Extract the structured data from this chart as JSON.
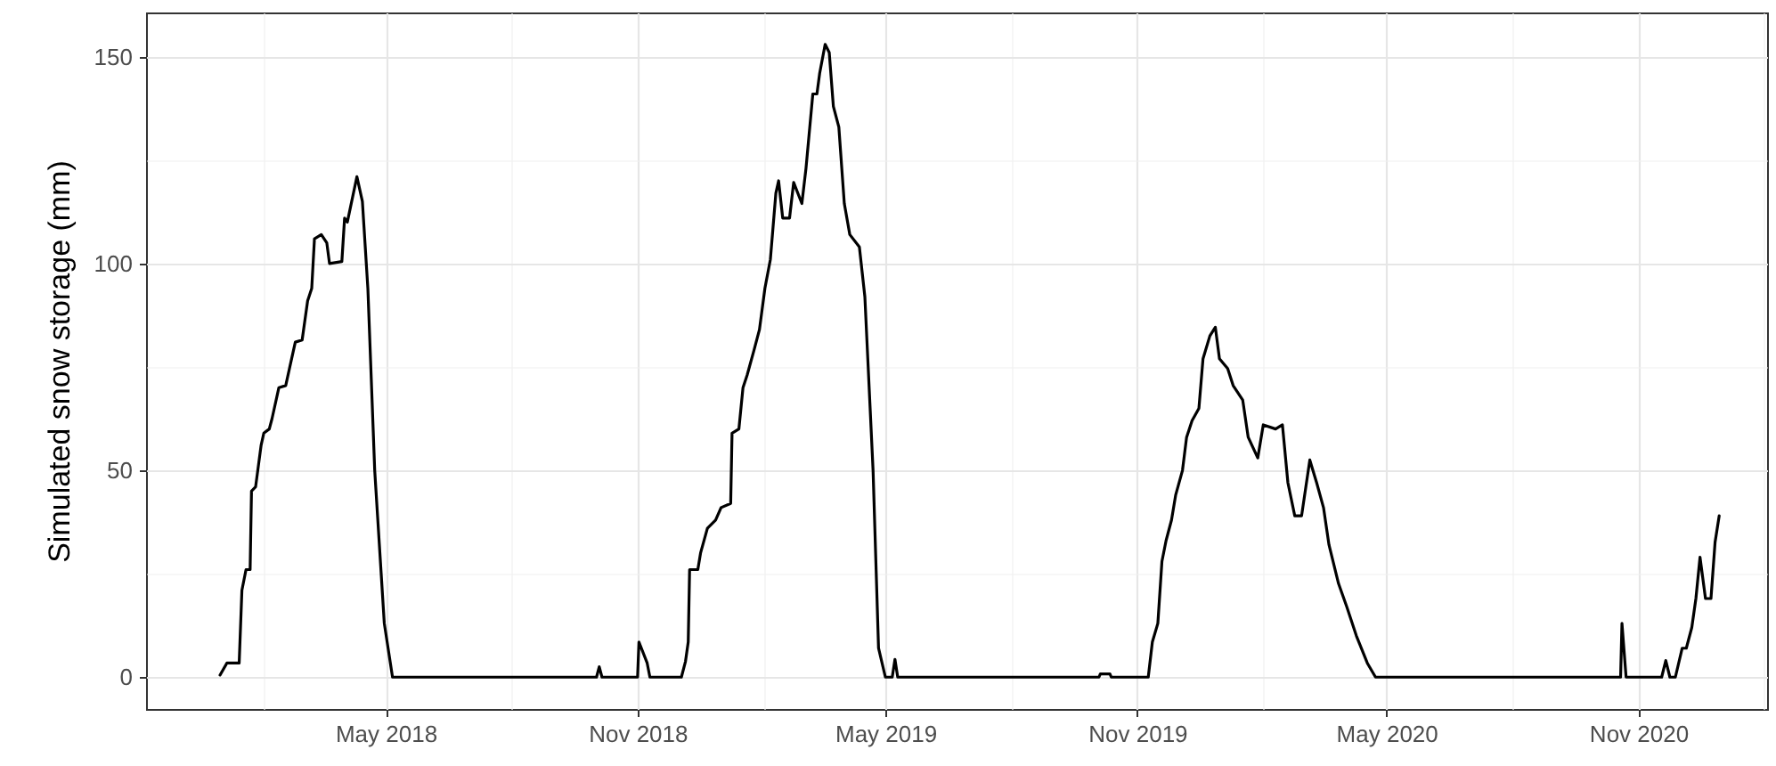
{
  "chart_data": {
    "type": "line",
    "ylabel": "Simulated snow storage (mm)",
    "x": [
      "2017-12-31",
      "2018-01-05",
      "2018-01-14",
      "2018-01-16",
      "2018-01-19",
      "2018-01-22",
      "2018-01-23",
      "2018-01-26",
      "2018-01-28",
      "2018-01-30",
      "2018-02-01",
      "2018-02-05",
      "2018-02-07",
      "2018-02-12",
      "2018-02-17",
      "2018-02-20",
      "2018-02-24",
      "2018-03-01",
      "2018-03-05",
      "2018-03-08",
      "2018-03-10",
      "2018-03-15",
      "2018-03-19",
      "2018-03-21",
      "2018-03-30",
      "2018-04-01",
      "2018-04-03",
      "2018-04-10",
      "2018-04-14",
      "2018-04-18",
      "2018-04-23",
      "2018-04-30",
      "2018-05-06",
      "2018-10-02",
      "2018-10-04",
      "2018-10-06",
      "2018-11-01",
      "2018-11-02",
      "2018-11-08",
      "2018-11-10",
      "2018-12-03",
      "2018-12-06",
      "2018-12-08",
      "2018-12-09",
      "2018-12-15",
      "2018-12-17",
      "2018-12-22",
      "2018-12-28",
      "2019-01-01",
      "2019-01-08",
      "2019-01-09",
      "2019-01-14",
      "2019-01-17",
      "2019-01-20",
      "2019-01-25",
      "2019-01-29",
      "2019-02-02",
      "2019-02-06",
      "2019-02-10",
      "2019-02-12",
      "2019-02-15",
      "2019-02-20",
      "2019-02-23",
      "2019-03-01",
      "2019-03-04",
      "2019-03-09",
      "2019-03-12",
      "2019-03-14",
      "2019-03-18",
      "2019-03-21",
      "2019-03-24",
      "2019-03-28",
      "2019-04-01",
      "2019-04-05",
      "2019-04-12",
      "2019-04-16",
      "2019-04-22",
      "2019-04-26",
      "2019-05-01",
      "2019-05-06",
      "2019-05-08",
      "2019-05-10",
      "2019-10-04",
      "2019-10-05",
      "2019-10-12",
      "2019-10-13",
      "2019-11-09",
      "2019-11-12",
      "2019-11-16",
      "2019-11-19",
      "2019-11-22",
      "2019-11-26",
      "2019-11-29",
      "2019-12-04",
      "2019-12-07",
      "2019-12-11",
      "2019-12-16",
      "2019-12-19",
      "2019-12-24",
      "2019-12-28",
      "2019-12-31",
      "2020-01-06",
      "2020-01-10",
      "2020-01-17",
      "2020-01-21",
      "2020-01-28",
      "2020-02-01",
      "2020-02-10",
      "2020-02-15",
      "2020-02-19",
      "2020-02-24",
      "2020-02-29",
      "2020-03-06",
      "2020-03-11",
      "2020-03-16",
      "2020-03-20",
      "2020-03-27",
      "2020-04-02",
      "2020-04-09",
      "2020-04-17",
      "2020-04-23",
      "2020-10-19",
      "2020-10-20",
      "2020-10-23",
      "2020-11-18",
      "2020-11-21",
      "2020-11-24",
      "2020-11-28",
      "2020-12-03",
      "2020-12-06",
      "2020-12-10",
      "2020-12-13",
      "2020-12-16",
      "2020-12-20",
      "2020-12-24",
      "2020-12-27",
      "2020-12-30"
    ],
    "series": [
      {
        "color": "#000000",
        "values": [
          0.5,
          3.4,
          3.4,
          21,
          26,
          26,
          45,
          46,
          51,
          56,
          59,
          60,
          62.5,
          70,
          70.5,
          75,
          81,
          81.5,
          91,
          94,
          106,
          107,
          105,
          100,
          100.5,
          111,
          110,
          121,
          115,
          94,
          50,
          13,
          0,
          0,
          2.5,
          0,
          0,
          8.5,
          3.4,
          0,
          0,
          3.8,
          8.5,
          26,
          26,
          30,
          36,
          38,
          41,
          42,
          59,
          60,
          70,
          73,
          79,
          84,
          94,
          101,
          117,
          120,
          111,
          111,
          119.6,
          114.5,
          123,
          141,
          141,
          146,
          153,
          151,
          138,
          133,
          114.5,
          107,
          104,
          92,
          50,
          7,
          0,
          0,
          4.3,
          0,
          0,
          0.8,
          0.8,
          0,
          0,
          8.5,
          13,
          28,
          33,
          38,
          44,
          50,
          58,
          62,
          65,
          77,
          82.5,
          84.6,
          77,
          74.6,
          70.5,
          67,
          58,
          53,
          61,
          60,
          61,
          47,
          39,
          39,
          52.5,
          47,
          41,
          32,
          22.6,
          17,
          10,
          3.4,
          0,
          0,
          13,
          0,
          0,
          4,
          0,
          0,
          7,
          7,
          12,
          19,
          29,
          19,
          19,
          32.6,
          39
        ]
      }
    ],
    "xlim": [
      "2017-11-07",
      "2021-02-03"
    ],
    "xticks": [
      {
        "value": "2018-02-01",
        "label": null
      },
      {
        "value": "2018-05-01",
        "label": "May 2018"
      },
      {
        "value": "2018-08-01",
        "label": null
      },
      {
        "value": "2018-11-01",
        "label": "Nov 2018"
      },
      {
        "value": "2019-02-01",
        "label": null
      },
      {
        "value": "2019-05-01",
        "label": "May 2019"
      },
      {
        "value": "2019-08-01",
        "label": null
      },
      {
        "value": "2019-11-01",
        "label": "Nov 2019"
      },
      {
        "value": "2020-02-01",
        "label": null
      },
      {
        "value": "2020-05-01",
        "label": "May 2020"
      },
      {
        "value": "2020-08-01",
        "label": null
      },
      {
        "value": "2020-11-01",
        "label": "Nov 2020"
      },
      {
        "value": "2021-02-01",
        "label": null
      }
    ],
    "ylim": [
      -7.7,
      160.7
    ],
    "yticks": [
      0,
      {
        "value": 25,
        "label": null
      },
      50,
      {
        "value": 75,
        "label": null
      },
      100,
      {
        "value": 125,
        "label": null
      },
      150
    ],
    "grid": true
  }
}
